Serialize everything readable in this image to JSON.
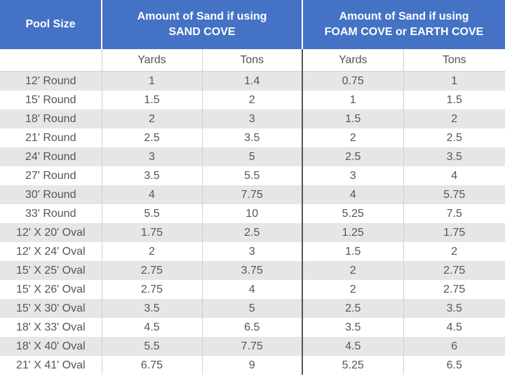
{
  "header": {
    "pool_size": "Pool Size",
    "sand_cove_line1": "Amount of Sand if using",
    "sand_cove_line2": "SAND COVE",
    "foam_cove_line1": "Amount of Sand if using",
    "foam_cove_line2": "FOAM COVE or EARTH COVE"
  },
  "subheader": {
    "yards_1": "Yards",
    "tons_1": "Tons",
    "yards_2": "Yards",
    "tons_2": "Tons"
  },
  "rows": [
    {
      "size": "12' Round",
      "sand_yards": "1",
      "sand_tons": "1.4",
      "foam_yards": "0.75",
      "foam_tons": "1"
    },
    {
      "size": "15' Round",
      "sand_yards": "1.5",
      "sand_tons": "2",
      "foam_yards": "1",
      "foam_tons": "1.5"
    },
    {
      "size": "18' Round",
      "sand_yards": "2",
      "sand_tons": "3",
      "foam_yards": "1.5",
      "foam_tons": "2"
    },
    {
      "size": "21' Round",
      "sand_yards": "2.5",
      "sand_tons": "3.5",
      "foam_yards": "2",
      "foam_tons": "2.5"
    },
    {
      "size": "24' Round",
      "sand_yards": "3",
      "sand_tons": "5",
      "foam_yards": "2.5",
      "foam_tons": "3.5"
    },
    {
      "size": "27' Round",
      "sand_yards": "3.5",
      "sand_tons": "5.5",
      "foam_yards": "3",
      "foam_tons": "4"
    },
    {
      "size": "30' Round",
      "sand_yards": "4",
      "sand_tons": "7.75",
      "foam_yards": "4",
      "foam_tons": "5.75"
    },
    {
      "size": "33' Round",
      "sand_yards": "5.5",
      "sand_tons": "10",
      "foam_yards": "5.25",
      "foam_tons": "7.5"
    },
    {
      "size": "12' X 20' Oval",
      "sand_yards": "1.75",
      "sand_tons": "2.5",
      "foam_yards": "1.25",
      "foam_tons": "1.75"
    },
    {
      "size": "12' X 24' Oval",
      "sand_yards": "2",
      "sand_tons": "3",
      "foam_yards": "1.5",
      "foam_tons": "2"
    },
    {
      "size": "15' X 25' Oval",
      "sand_yards": "2.75",
      "sand_tons": "3.75",
      "foam_yards": "2",
      "foam_tons": "2.75"
    },
    {
      "size": "15' X 26' Oval",
      "sand_yards": "2.75",
      "sand_tons": "4",
      "foam_yards": "2",
      "foam_tons": "2.75"
    },
    {
      "size": "15' X 30' Oval",
      "sand_yards": "3.5",
      "sand_tons": "5",
      "foam_yards": "2.5",
      "foam_tons": "3.5"
    },
    {
      "size": "18' X 33' Oval",
      "sand_yards": "4.5",
      "sand_tons": "6.5",
      "foam_yards": "3.5",
      "foam_tons": "4.5"
    },
    {
      "size": "18' X 40' Oval",
      "sand_yards": "5.5",
      "sand_tons": "7.75",
      "foam_yards": "4.5",
      "foam_tons": "6"
    },
    {
      "size": "21' X 41' Oval",
      "sand_yards": "6.75",
      "sand_tons": "9",
      "foam_yards": "5.25",
      "foam_tons": "6.5"
    }
  ],
  "colors": {
    "header_bg": "#4472c4",
    "header_text": "#ffffff",
    "stripe": "#e6e6e6",
    "body_text": "#555555"
  }
}
